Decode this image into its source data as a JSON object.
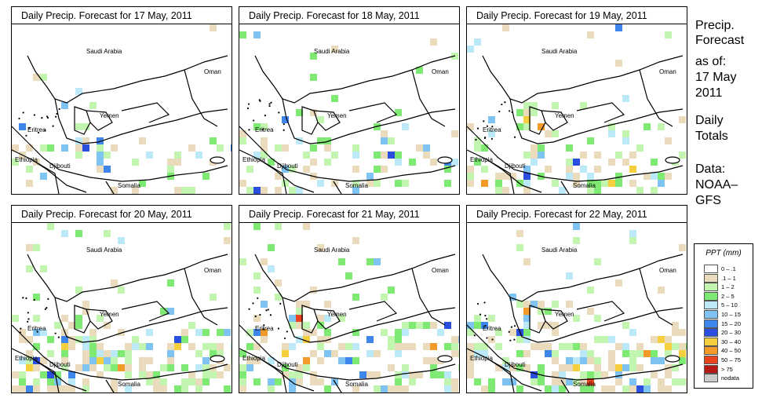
{
  "panels": [
    {
      "title": "Daily Precip. Forecast for  17 May, 2011"
    },
    {
      "title": "Daily Precip. Forecast for  18 May, 2011"
    },
    {
      "title": "Daily Precip. Forecast for  19 May, 2011"
    },
    {
      "title": "Daily Precip. Forecast for  20 May, 2011"
    },
    {
      "title": "Daily Precip. Forecast for  21 May, 2011"
    },
    {
      "title": "Daily Precip. Forecast for  22 May, 2011"
    }
  ],
  "map_labels": {
    "saudi": "Saudi Arabia",
    "oman": "Oman",
    "yemen": "Yemen",
    "eritrea": "Eritrea",
    "ethiopia": "Ethiopia",
    "djibouti": "Djibouti",
    "somalia": "Somalia"
  },
  "sidebar": {
    "title_line1": "Precip.",
    "title_line2": "Forecast",
    "asof_line1": "as of:",
    "asof_line2": "17 May",
    "asof_line3": "2011",
    "period_line1": "Daily",
    "period_line2": "Totals",
    "data_line1": "Data:",
    "data_line2": "NOAA–",
    "data_line3": "GFS"
  },
  "legend": {
    "title": "PPT (mm)",
    "classes": [
      {
        "label": "0 – .1",
        "color": "#ffffff"
      },
      {
        "label": ".1 – 1",
        "color": "#eadbbd"
      },
      {
        "label": "1 – 2",
        "color": "#c2f5b0"
      },
      {
        "label": "2 – 5",
        "color": "#7eea73"
      },
      {
        "label": "5 – 10",
        "color": "#bce9f7"
      },
      {
        "label": "10 – 15",
        "color": "#7ec3f2"
      },
      {
        "label": "15 – 20",
        "color": "#3f86ec"
      },
      {
        "label": "20 – 30",
        "color": "#2a4ee0"
      },
      {
        "label": "30 – 40",
        "color": "#f5cf3e"
      },
      {
        "label": "40 – 50",
        "color": "#f29a2a"
      },
      {
        "label": "50 – 75",
        "color": "#e8441e"
      },
      {
        "label": "> 75",
        "color": "#b51a14"
      },
      {
        "label": "nodata",
        "color": "#cbcbcb"
      }
    ]
  }
}
